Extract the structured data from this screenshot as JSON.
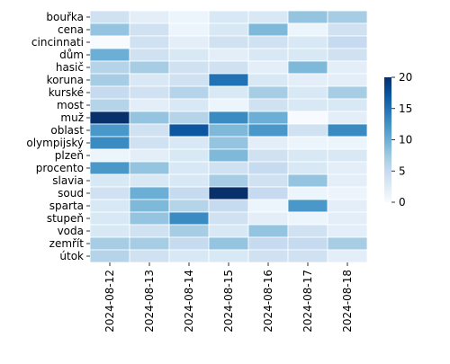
{
  "chart_data": {
    "type": "heatmap",
    "x_categories": [
      "2024-08-12",
      "2024-08-13",
      "2024-08-14",
      "2024-08-15",
      "2024-08-16",
      "2024-08-17",
      "2024-08-18"
    ],
    "y_categories": [
      "bouřka",
      "cena",
      "cincinnati",
      "dům",
      "hasič",
      "koruna",
      "kurské",
      "most",
      "muž",
      "oblast",
      "olympijský",
      "plzeň",
      "procento",
      "slavia",
      "soud",
      "sparta",
      "stupeň",
      "voda",
      "zemřít",
      "útok"
    ],
    "values": [
      [
        4,
        2,
        1,
        3,
        3,
        8,
        7
      ],
      [
        8,
        4,
        1,
        3,
        9,
        1,
        4
      ],
      [
        0,
        4,
        2,
        4,
        4,
        3,
        5
      ],
      [
        10,
        4,
        3,
        2,
        3,
        3,
        4
      ],
      [
        6,
        7,
        4,
        4,
        2,
        9,
        2
      ],
      [
        7,
        3,
        4,
        15,
        3,
        2,
        2
      ],
      [
        5,
        4,
        6,
        3,
        7,
        3,
        7
      ],
      [
        6,
        2,
        3,
        1,
        4,
        3,
        3
      ],
      [
        20,
        8,
        6,
        13,
        10,
        0,
        2
      ],
      [
        12,
        4,
        17,
        9,
        12,
        4,
        13
      ],
      [
        13,
        4,
        3,
        8,
        2,
        1,
        1
      ],
      [
        1,
        2,
        3,
        9,
        4,
        3,
        3
      ],
      [
        12,
        8,
        3,
        4,
        5,
        3,
        2
      ],
      [
        3,
        3,
        3,
        7,
        4,
        8,
        2
      ],
      [
        4,
        10,
        5,
        23,
        5,
        1,
        1
      ],
      [
        3,
        9,
        6,
        5,
        1,
        12,
        2
      ],
      [
        3,
        8,
        13,
        4,
        2,
        1,
        2
      ],
      [
        3,
        4,
        7,
        3,
        8,
        4,
        2
      ],
      [
        7,
        7,
        5,
        8,
        5,
        5,
        7
      ],
      [
        6,
        4,
        3,
        3,
        4,
        4,
        2
      ]
    ],
    "colorbar": {
      "min": 0,
      "max": 20,
      "ticks": [
        0,
        5,
        10,
        15,
        20
      ]
    },
    "colormap": [
      "#f7fbff",
      "#deebf7",
      "#c6dbef",
      "#9ecae1",
      "#6baed6",
      "#4292c6",
      "#2171b5",
      "#08519c",
      "#08306b"
    ],
    "grid": true
  }
}
